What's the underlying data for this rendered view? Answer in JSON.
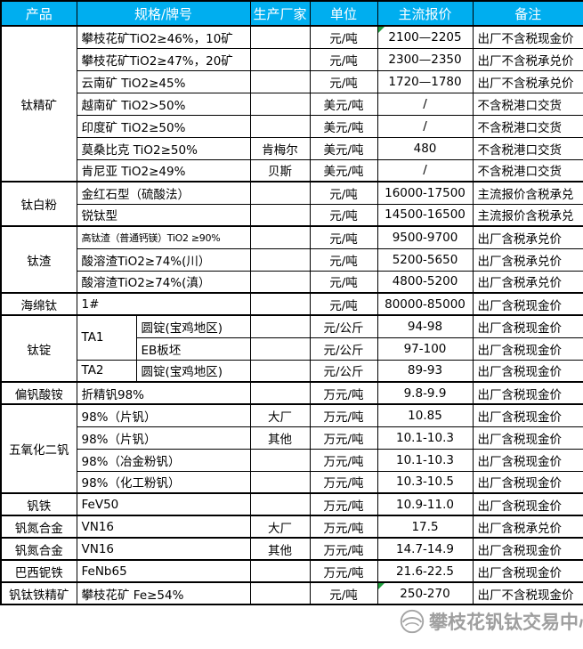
{
  "header": {
    "columns": [
      "产品",
      "规格/牌号",
      "生产厂家",
      "单位",
      "主流报价",
      "备注"
    ]
  },
  "colors": {
    "header_bg": "#00AEEF",
    "header_text": "#FFFFFF",
    "border": "#000000",
    "comment_flag_green": "#1E9F3E",
    "watermark_gray": "#6E6E6E"
  },
  "watermark": {
    "text": "攀枝花钒钛交易中心"
  },
  "table": {
    "groups": [
      {
        "product": "钛精矿",
        "rows": [
          {
            "spec": "攀枝花矿TiO2≥46%，10矿",
            "maker": "",
            "unit": "元/吨",
            "price": "2100—2205",
            "note": "出厂不含税现金价",
            "flag": true
          },
          {
            "spec": "攀枝花矿TiO2≥47%，20矿",
            "maker": "",
            "unit": "元/吨",
            "price": "2300—2350",
            "note": "出厂不含税承兑价"
          },
          {
            "spec": "云南矿 TiO2≥45%",
            "maker": "",
            "unit": "元/吨",
            "price": "1720—1780",
            "note": "出厂不含税承兑价"
          },
          {
            "spec": "越南矿 TiO2>50%",
            "maker": "",
            "unit": "美元/吨",
            "price": "/",
            "note": "不含税港口交货"
          },
          {
            "spec": "印度矿 TiO2≥50%",
            "maker": "",
            "unit": "美元/吨",
            "price": "/",
            "note": "不含税港口交货"
          },
          {
            "spec": "莫桑比克 TiO2≥50%",
            "maker": "肯梅尔",
            "unit": "美元/吨",
            "price": "480",
            "note": "不含税港口交货"
          },
          {
            "spec": "肯尼亚 TiO2≥49%",
            "maker": "贝斯",
            "unit": "美元/吨",
            "price": "/",
            "note": "不含税港口交货"
          }
        ]
      },
      {
        "product": "钛白粉",
        "rows": [
          {
            "spec": "金红石型（硫酸法）",
            "maker": "",
            "unit": "元/吨",
            "price": "16000-17500",
            "note": "主流报价含税承兑"
          },
          {
            "spec": "锐钛型",
            "maker": "",
            "unit": "元/吨",
            "price": "14500-16500",
            "note": "主流报价含税承兑"
          }
        ]
      },
      {
        "product": "钛渣",
        "rows": [
          {
            "spec": "高钛渣（普通钙镁）TiO2 ≥90%",
            "small": true,
            "maker": "",
            "unit": "元/吨",
            "price": "9500-9700",
            "note": "出厂含税承兑价"
          },
          {
            "spec": "酸溶渣TiO2≥74%(川）",
            "maker": "",
            "unit": "元/吨",
            "price": "5200-5650",
            "note": "出厂含税承兑价"
          },
          {
            "spec": "酸溶渣TiO2≥74%(滇）",
            "maker": "",
            "unit": "元/吨",
            "price": "4800-5200",
            "note": "出厂含税承兑价"
          }
        ]
      },
      {
        "product": "海绵钛",
        "rows": [
          {
            "spec": "1#",
            "maker": "",
            "unit": "元/吨",
            "price": "80000-85000",
            "note": "出厂含税现金价"
          }
        ]
      },
      {
        "product": "钛锭",
        "rows": [
          {
            "grade": "TA1",
            "grade_rowspan": 2,
            "form": "圆锭(宝鸡地区)",
            "maker": "",
            "unit": "元/公斤",
            "price": "94-98",
            "note": "出厂含税现金价"
          },
          {
            "form": "EB板坯",
            "maker": "",
            "unit": "元/公斤",
            "price": "97-100",
            "note": "出厂含税现金价"
          },
          {
            "grade": "TA2",
            "form": "圆锭(宝鸡地区)",
            "maker": "",
            "unit": "元/公斤",
            "price": "89-93",
            "note": "出厂含税现金价"
          }
        ]
      },
      {
        "product": "偏钒酸铵",
        "rows": [
          {
            "spec": "折精钒98%",
            "maker": "",
            "unit": "万元/吨",
            "price": "9.8-9.9",
            "note": "出厂含税现金价"
          }
        ]
      },
      {
        "product": "五氧化二钒",
        "rows": [
          {
            "spec": "98%（片钒）",
            "maker": "大厂",
            "unit": "万元/吨",
            "price": "10.85",
            "note": "出厂含税现金价"
          },
          {
            "spec": "98%（片钒）",
            "maker": "其他",
            "unit": "万元/吨",
            "price": "10.1-10.3",
            "note": "出厂含税现金价"
          },
          {
            "spec": "98%（冶金粉钒）",
            "maker": "",
            "unit": "万元/吨",
            "price": "10.1-10.3",
            "note": "出厂含税现金价"
          },
          {
            "spec": "98%（化工粉钒）",
            "maker": "",
            "unit": "万元/吨",
            "price": "10.3-10.5",
            "note": "出厂含税现金价"
          }
        ]
      },
      {
        "product": "钒铁",
        "rows": [
          {
            "spec": "FeV50",
            "maker": "",
            "unit": "万元/吨",
            "price": "10.9-11.0",
            "note": "出厂含税现金价"
          }
        ]
      },
      {
        "product": "钒氮合金",
        "rows": [
          {
            "spec": "VN16",
            "maker": "大厂",
            "unit": "万元/吨",
            "price": "17.5",
            "note": "出厂含税承兑价"
          }
        ]
      },
      {
        "product": "钒氮合金",
        "rows": [
          {
            "spec": "VN16",
            "maker": "其他",
            "unit": "万元/吨",
            "price": "14.7-14.9",
            "note": "出厂含税现金价"
          }
        ]
      },
      {
        "product": "巴西铌铁",
        "rows": [
          {
            "spec": "FeNb65",
            "maker": "",
            "unit": "万元/吨",
            "price": "21.6-22.5",
            "note": "出厂含税现金价"
          }
        ]
      },
      {
        "product": "钒钛铁精矿",
        "rows": [
          {
            "spec": "攀枝花矿 Fe≥54%",
            "maker": "",
            "unit": "元/吨",
            "price": "250-270",
            "note": "出厂不含税现金价",
            "flag": true
          }
        ]
      }
    ]
  }
}
